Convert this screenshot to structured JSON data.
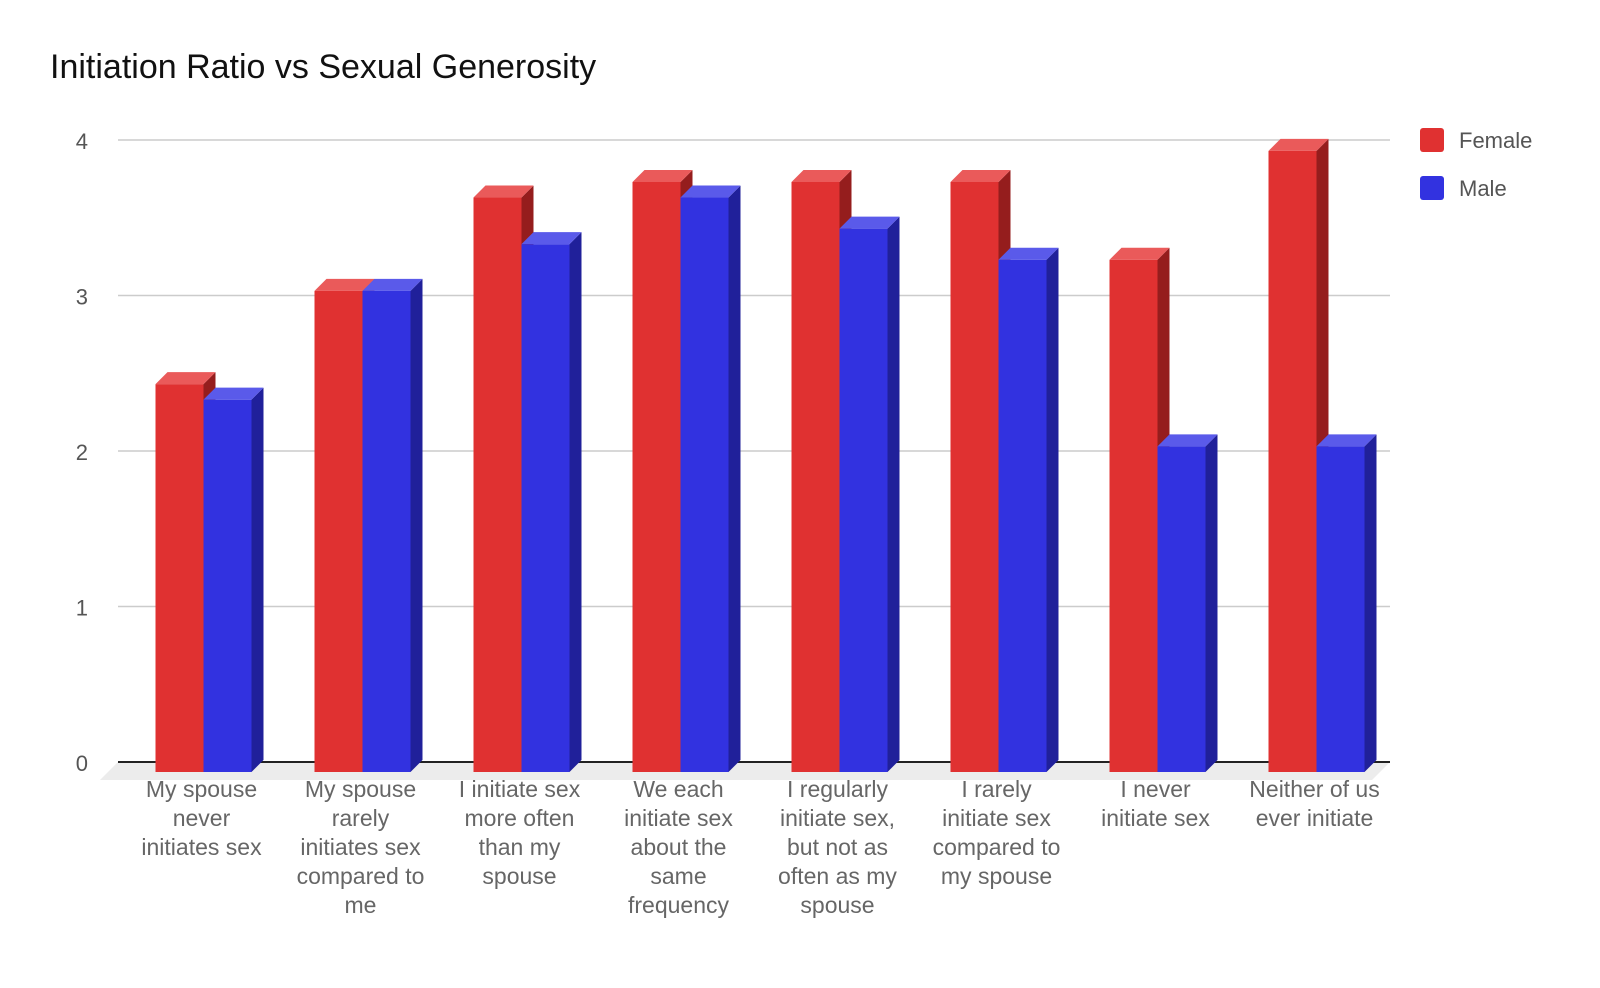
{
  "chart_data": {
    "type": "bar",
    "title": "Initiation Ratio vs Sexual Generosity",
    "xlabel": "",
    "ylabel": "",
    "ylim": [
      0,
      4
    ],
    "yticks": [
      "0",
      "1",
      "2",
      "3",
      "4"
    ],
    "grid": true,
    "legend_position": "top-right",
    "style": "3d",
    "categories": [
      "My spouse never initiates sex",
      "My spouse rarely initiates sex compared to me",
      "I initiate sex more often than my spouse",
      "We each initiate sex about the same frequency",
      "I regularly initiate sex, but not as often as my spouse",
      "I rarely initiate sex compared to my spouse",
      "I never initiate sex",
      "Neither of us ever initiate"
    ],
    "category_lines": [
      [
        "My spouse",
        "never",
        "initiates sex"
      ],
      [
        "My spouse",
        "rarely",
        "initiates sex",
        "compared to",
        "me"
      ],
      [
        "I initiate sex",
        "more often",
        "than my",
        "spouse"
      ],
      [
        "We each",
        "initiate sex",
        "about the",
        "same",
        "frequency"
      ],
      [
        "I regularly",
        "initiate sex,",
        "but not as",
        "often as my",
        "spouse"
      ],
      [
        "I rarely",
        "initiate sex",
        "compared to",
        "my spouse"
      ],
      [
        "I never",
        "initiate sex"
      ],
      [
        "Neither of us",
        "ever initiate"
      ]
    ],
    "series": [
      {
        "name": "Female",
        "color": "#e03131",
        "side_color": "#951d1d",
        "top_color": "#ea5a5a",
        "values": [
          2.43,
          3.03,
          3.63,
          3.73,
          3.73,
          3.73,
          3.23,
          3.93
        ]
      },
      {
        "name": "Male",
        "color": "#3232e0",
        "side_color": "#20209a",
        "top_color": "#5a5aea",
        "values": [
          2.33,
          3.03,
          3.33,
          3.63,
          3.43,
          3.23,
          2.03,
          2.03
        ]
      }
    ]
  }
}
